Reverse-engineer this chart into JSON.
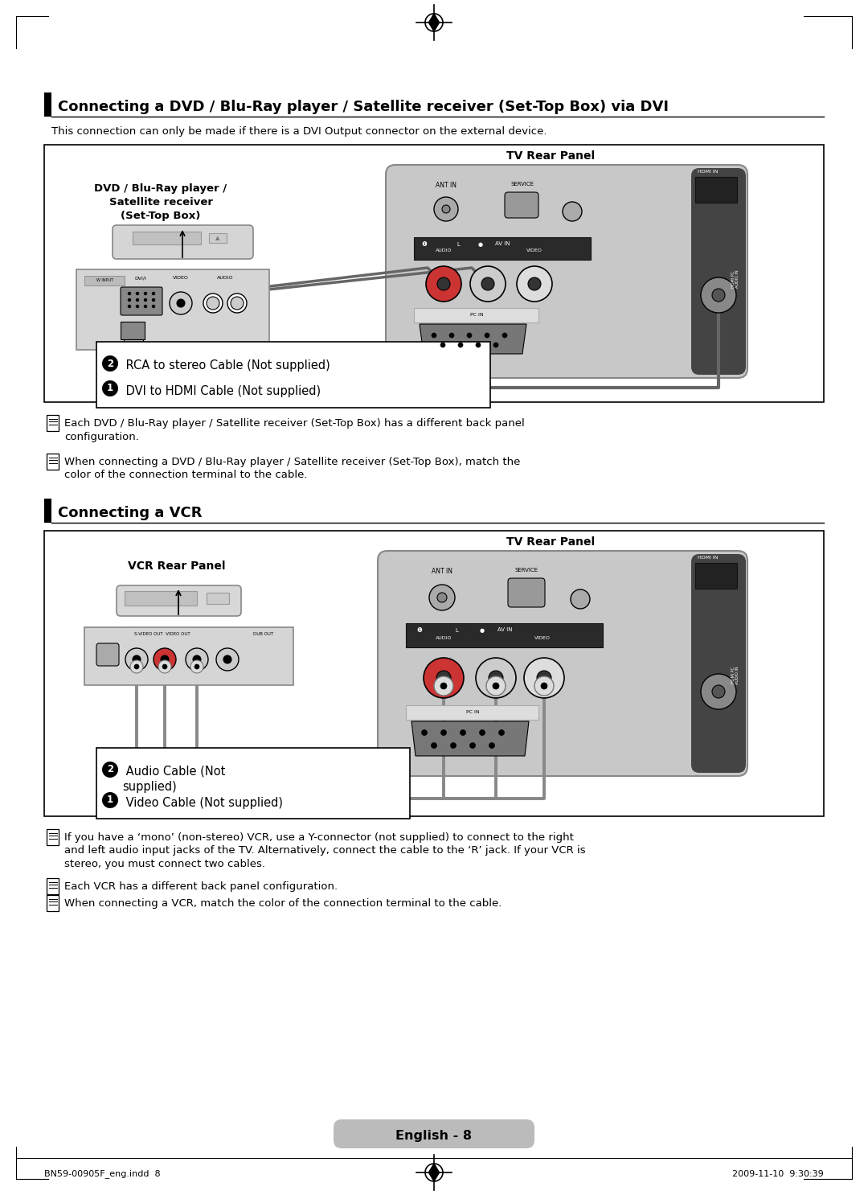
{
  "page_bg": "#ffffff",
  "title1": "Connecting a DVD / Blu-Ray player / Satellite receiver (Set-Top Box) via DVI",
  "subtitle1": "This connection can only be made if there is a DVI Output connector on the external device.",
  "box1_label": "TV Rear Panel",
  "box1_device_label": "DVD / Blu-Ray player /\nSatellite receiver\n(Set-Top Box)",
  "box1_cable1": " DVI to HDMI Cable (Not supplied)",
  "box1_cable2": " RCA to stereo Cable (Not supplied)",
  "note1a": "Each DVD / Blu-Ray player / Satellite receiver (Set-Top Box) has a different back panel\nconfiguration.",
  "note1b": "When connecting a DVD / Blu-Ray player / Satellite receiver (Set-Top Box), match the\ncolor of the connection terminal to the cable.",
  "title2": "Connecting a VCR",
  "box2_label": "TV Rear Panel",
  "box2_device_label": "VCR Rear Panel",
  "box2_cable1": " Video Cable (Not supplied)",
  "box2_cable2": " Audio Cable (Not\nsupplied)",
  "note2a": "If you have a ‘mono’ (non-stereo) VCR, use a Y-connector (not supplied) to connect to the right\nand left audio input jacks of the TV. Alternatively, connect the cable to the ‘R’ jack. If your VCR is\nstereo, you must connect two cables.",
  "note2b": "Each VCR has a different back panel configuration.",
  "note2c": "When connecting a VCR, match the color of the connection terminal to the cable.",
  "footer_left": "BN59-00905F_eng.indd  8",
  "footer_center": "English - 8",
  "footer_right": "2009-11-10  9:30:39",
  "black": "#000000",
  "white": "#ffffff",
  "gray_panel": "#c8c8c8",
  "gray_dark_panel": "#555555",
  "gray_medium": "#aaaaaa",
  "gray_light": "#d8d8d8",
  "gray_connector": "#888888"
}
